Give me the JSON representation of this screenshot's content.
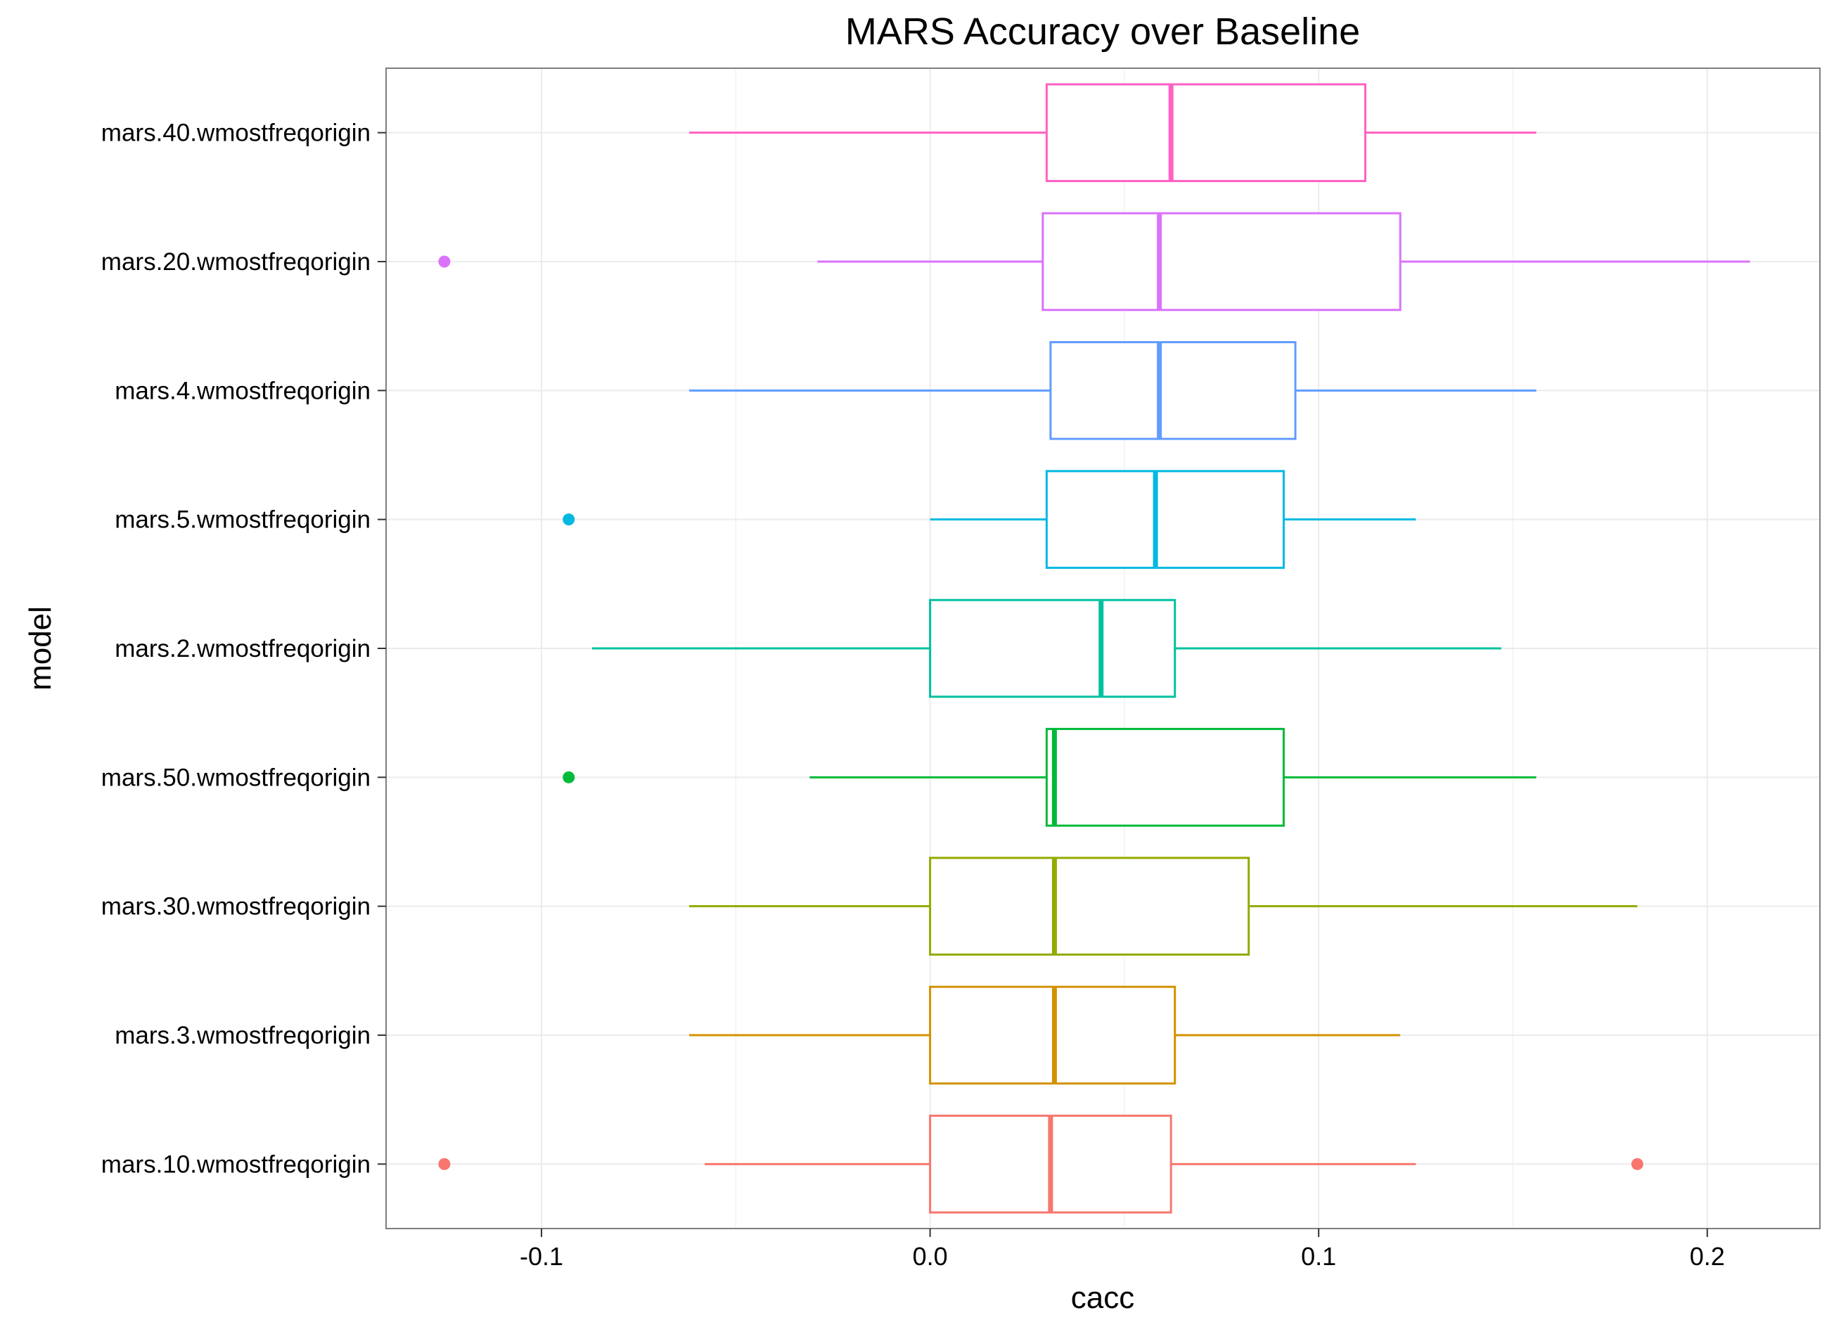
{
  "chart_data": {
    "type": "boxplot",
    "orientation": "horizontal",
    "title": "MARS Accuracy over Baseline",
    "xlabel": "cacc",
    "ylabel": "model",
    "xlim": [
      -0.14,
      0.229
    ],
    "xticks": [
      -0.1,
      0.0,
      0.1,
      0.2
    ],
    "xtick_labels": [
      "-0.1",
      "0.0",
      "0.1",
      "0.2"
    ],
    "grid": true,
    "legend": "none",
    "categories": [
      "mars.10.wmostfreqorigin",
      "mars.3.wmostfreqorigin",
      "mars.30.wmostfreqorigin",
      "mars.50.wmostfreqorigin",
      "mars.2.wmostfreqorigin",
      "mars.5.wmostfreqorigin",
      "mars.4.wmostfreqorigin",
      "mars.20.wmostfreqorigin",
      "mars.40.wmostfreqorigin"
    ],
    "boxes": [
      {
        "model": "mars.10.wmostfreqorigin",
        "color": "#F8766D",
        "whisker_low": -0.058,
        "q1": 0.0,
        "median": 0.031,
        "q3": 0.062,
        "whisker_high": 0.125,
        "outliers": [
          -0.125,
          0.182
        ]
      },
      {
        "model": "mars.3.wmostfreqorigin",
        "color": "#D39200",
        "whisker_low": -0.062,
        "q1": 0.0,
        "median": 0.032,
        "q3": 0.063,
        "whisker_high": 0.121,
        "outliers": []
      },
      {
        "model": "mars.30.wmostfreqorigin",
        "color": "#93AA00",
        "whisker_low": -0.062,
        "q1": 0.0,
        "median": 0.032,
        "q3": 0.082,
        "whisker_high": 0.182,
        "outliers": []
      },
      {
        "model": "mars.50.wmostfreqorigin",
        "color": "#00BA38",
        "whisker_low": -0.031,
        "q1": 0.03,
        "median": 0.032,
        "q3": 0.091,
        "whisker_high": 0.156,
        "outliers": [
          -0.093
        ]
      },
      {
        "model": "mars.2.wmostfreqorigin",
        "color": "#00C19F",
        "whisker_low": -0.087,
        "q1": 0.0,
        "median": 0.044,
        "q3": 0.063,
        "whisker_high": 0.147,
        "outliers": []
      },
      {
        "model": "mars.5.wmostfreqorigin",
        "color": "#00B9E3",
        "whisker_low": 0.0,
        "q1": 0.03,
        "median": 0.058,
        "q3": 0.091,
        "whisker_high": 0.125,
        "outliers": [
          -0.093
        ]
      },
      {
        "model": "mars.4.wmostfreqorigin",
        "color": "#619CFF",
        "whisker_low": -0.062,
        "q1": 0.031,
        "median": 0.059,
        "q3": 0.094,
        "whisker_high": 0.156,
        "outliers": []
      },
      {
        "model": "mars.20.wmostfreqorigin",
        "color": "#DB72FB",
        "whisker_low": -0.029,
        "q1": 0.029,
        "median": 0.059,
        "q3": 0.121,
        "whisker_high": 0.211,
        "outliers": [
          -0.125
        ]
      },
      {
        "model": "mars.40.wmostfreqorigin",
        "color": "#FF61C3",
        "whisker_low": -0.062,
        "q1": 0.03,
        "median": 0.062,
        "q3": 0.112,
        "whisker_high": 0.156,
        "outliers": []
      }
    ]
  }
}
